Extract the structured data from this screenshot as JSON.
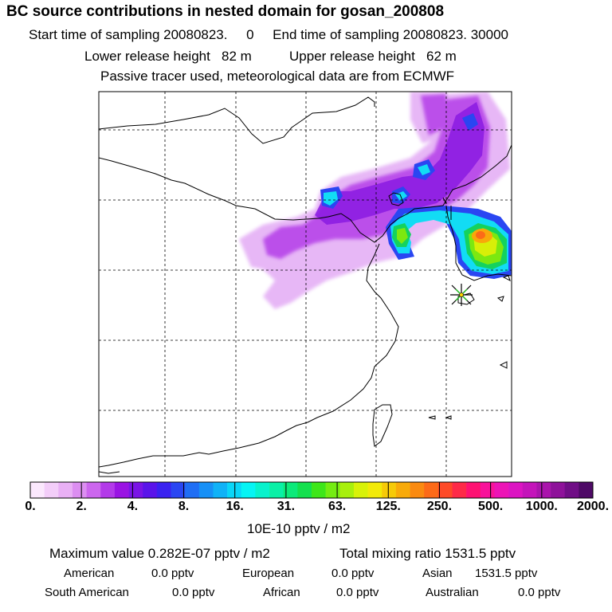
{
  "header": {
    "title": "BC  source contributions in nested domain for gosan_200808",
    "sampling_line": "Start time of sampling 20080823.     0     End time of sampling 20080823. 30000",
    "release_line": "Lower release height   82 m          Upper release height   62 m",
    "model_line": "Passive tracer used, meteorological data are from ECMWF"
  },
  "colorbar": {
    "tick_labels": [
      "0.",
      "2.",
      "4.",
      "8.",
      "16.",
      "31.",
      "63.",
      "125.",
      "250.",
      "500.",
      "1000.",
      "2000."
    ],
    "units": "10E-10 pptv / m2",
    "colors": [
      "#fbe8fd",
      "#f3cdf9",
      "#e9b0f5",
      "#dc8ef1",
      "#cc66ee",
      "#b33ae9",
      "#9a14e3",
      "#7a14e6",
      "#5a14ea",
      "#3a22f0",
      "#2a46f2",
      "#1f6ef4",
      "#1790f6",
      "#10b2f7",
      "#0ad6f8",
      "#06f4f4",
      "#08f2cc",
      "#0af0a6",
      "#0cea7a",
      "#14e04e",
      "#3ee61a",
      "#74ec12",
      "#a8f00c",
      "#d8f208",
      "#f2ea08",
      "#f6ca08",
      "#f8aa0a",
      "#fa8a10",
      "#fc6a18",
      "#fe4a28",
      "#fe2a48",
      "#fe1272",
      "#f8129a",
      "#ec14b6",
      "#dc14c2",
      "#c414ba",
      "#aa14ac",
      "#8e129a",
      "#700e86",
      "#4e0a66"
    ]
  },
  "stats": {
    "max_value": "Maximum value  0.282E-07 pptv / m2",
    "total_mixing": "Total mixing ratio     1531.5 pptv",
    "american_label": "American",
    "american_value": "0.0 pptv",
    "european_label": "European",
    "european_value": "0.0 pptv",
    "asian_label": "Asian",
    "asian_value": "1531.5 pptv",
    "south_american_label": "South American",
    "south_american_value": "0.0 pptv",
    "african_label": "African",
    "african_value": "0.0 pptv",
    "australian_label": "Australian",
    "australian_value": "0.0 pptv"
  }
}
